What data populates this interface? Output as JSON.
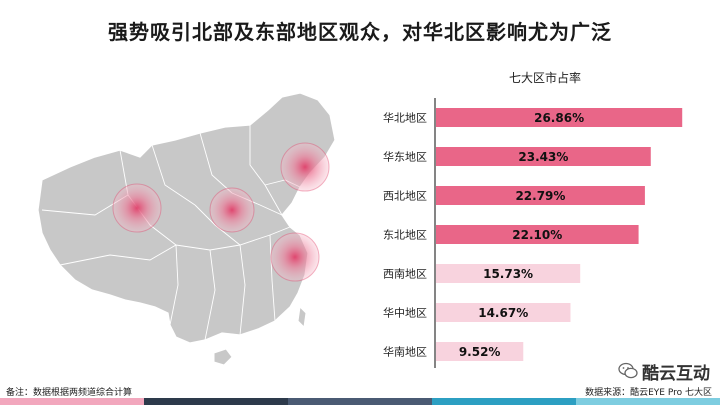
{
  "title": "强势吸引北部及东部地区观众，对华北区影响尤为广泛",
  "chart_data": {
    "type": "bar",
    "orientation": "horizontal",
    "title": "七大区市占率",
    "categories": [
      "华北地区",
      "华东地区",
      "西北地区",
      "东北地区",
      "西南地区",
      "华中地区",
      "华南地区"
    ],
    "values": [
      26.86,
      23.43,
      22.79,
      22.1,
      15.73,
      14.67,
      9.52
    ],
    "value_labels": [
      "26.86%",
      "23.43%",
      "22.79%",
      "22.10%",
      "15.73%",
      "14.67%",
      "9.52%"
    ],
    "unit": "%",
    "xlim": [
      0,
      30
    ],
    "highlight_count": 4,
    "colors": {
      "highlight": "#e96688",
      "light": "#f8d3de"
    },
    "grid": false,
    "legend": "none"
  },
  "map": {
    "hotspots": [
      "华北",
      "西北",
      "东北",
      "华东"
    ],
    "land_color": "#c8c8c8",
    "hotspot_color": "#e0406a"
  },
  "footer": {
    "note": "备注：数据根据两频道综合计算",
    "source": "数据来源：酷云EYE Pro 七大区"
  },
  "watermark": {
    "text": "酷云互动",
    "icon": "wechat-icon"
  },
  "stripe_colors": [
    "#f2a7bd",
    "#2d3a4b",
    "#4a5a73",
    "#2c9fc2",
    "#7ecde0"
  ]
}
